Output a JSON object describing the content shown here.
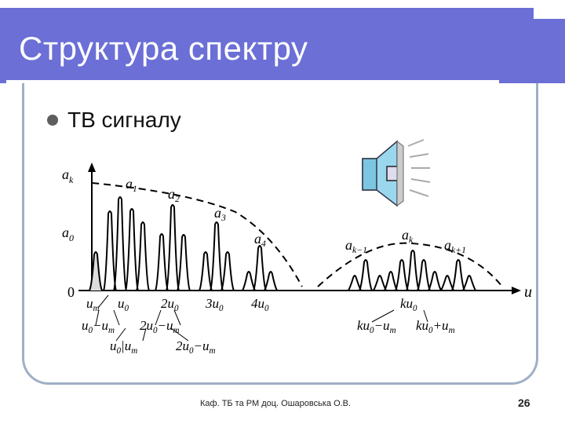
{
  "slide": {
    "title": "Структура спектру",
    "bullet": "ТВ сигналу",
    "footer": "Каф. ТБ та РМ доц. Ошаровська О.В.",
    "page_number": "26"
  },
  "diagram": {
    "y_axis_label": "a",
    "y_axis_sub": "k",
    "x_axis_label": "u",
    "zero": "0",
    "a0": "a",
    "a0_sub": "0",
    "peak_labels": [
      {
        "t": "a",
        "s": "1"
      },
      {
        "t": "a",
        "s": "2"
      },
      {
        "t": "a",
        "s": "3"
      },
      {
        "t": "a",
        "s": "4"
      },
      {
        "t": "a",
        "s": "k−1"
      },
      {
        "t": "a",
        "s": "k"
      },
      {
        "t": "a",
        "s": "k+1"
      }
    ],
    "row1": [
      {
        "t": "u",
        "s": "m"
      },
      {
        "t": "u",
        "s": "0"
      },
      {
        "t": "2u",
        "s": "0"
      },
      {
        "t": "3u",
        "s": "0"
      },
      {
        "t": "4u",
        "s": "0"
      },
      {
        "t": "ku",
        "s": "0"
      }
    ],
    "row2": [
      {
        "t": "u",
        "s": "0",
        "t2": "−u",
        "s2": "m"
      },
      {
        "t": "2u",
        "s": "0",
        "t2": "−u",
        "s2": "m"
      },
      {
        "t": "ku",
        "s": "0",
        "t2": "−u",
        "s2": "m"
      },
      {
        "t": "ku",
        "s": "0",
        "t2": "+u",
        "s2": "m"
      }
    ],
    "row3": [
      {
        "t": "u",
        "s": "0",
        "t2": "|u",
        "s2": "m"
      },
      {
        "t": "2u",
        "s": "0",
        "t2": "−u",
        "s2": "m"
      }
    ]
  }
}
